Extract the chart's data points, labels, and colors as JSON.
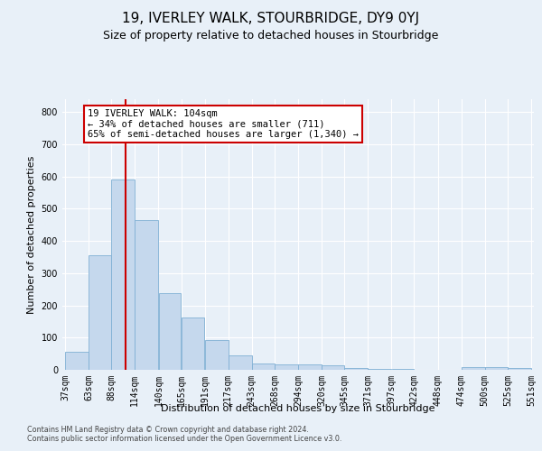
{
  "title": "19, IVERLEY WALK, STOURBRIDGE, DY9 0YJ",
  "subtitle": "Size of property relative to detached houses in Stourbridge",
  "xlabel": "Distribution of detached houses by size in Stourbridge",
  "ylabel": "Number of detached properties",
  "bin_edges": [
    37,
    63,
    88,
    114,
    140,
    165,
    191,
    217,
    243,
    268,
    294,
    320,
    345,
    371,
    397,
    422,
    448,
    474,
    500,
    525,
    551
  ],
  "bar_heights": [
    55,
    355,
    590,
    465,
    237,
    163,
    93,
    45,
    20,
    18,
    18,
    13,
    5,
    3,
    2,
    1,
    0,
    8,
    8,
    7
  ],
  "bar_color": "#c5d8ed",
  "bar_edgecolor": "#7fb0d4",
  "property_size": 104,
  "vline_color": "#cc0000",
  "annotation_text": "19 IVERLEY WALK: 104sqm\n← 34% of detached houses are smaller (711)\n65% of semi-detached houses are larger (1,340) →",
  "annotation_box_edgecolor": "#cc0000",
  "annotation_box_facecolor": "#ffffff",
  "ylim": [
    0,
    840
  ],
  "yticks": [
    0,
    100,
    200,
    300,
    400,
    500,
    600,
    700,
    800
  ],
  "footer1": "Contains HM Land Registry data © Crown copyright and database right 2024.",
  "footer2": "Contains public sector information licensed under the Open Government Licence v3.0.",
  "background_color": "#e8f0f8",
  "axes_facecolor": "#e8f0f8",
  "grid_color": "#ffffff",
  "title_fontsize": 11,
  "subtitle_fontsize": 9,
  "tick_fontsize": 7,
  "ylabel_fontsize": 8,
  "xlabel_fontsize": 8,
  "annotation_fontsize": 7.5
}
